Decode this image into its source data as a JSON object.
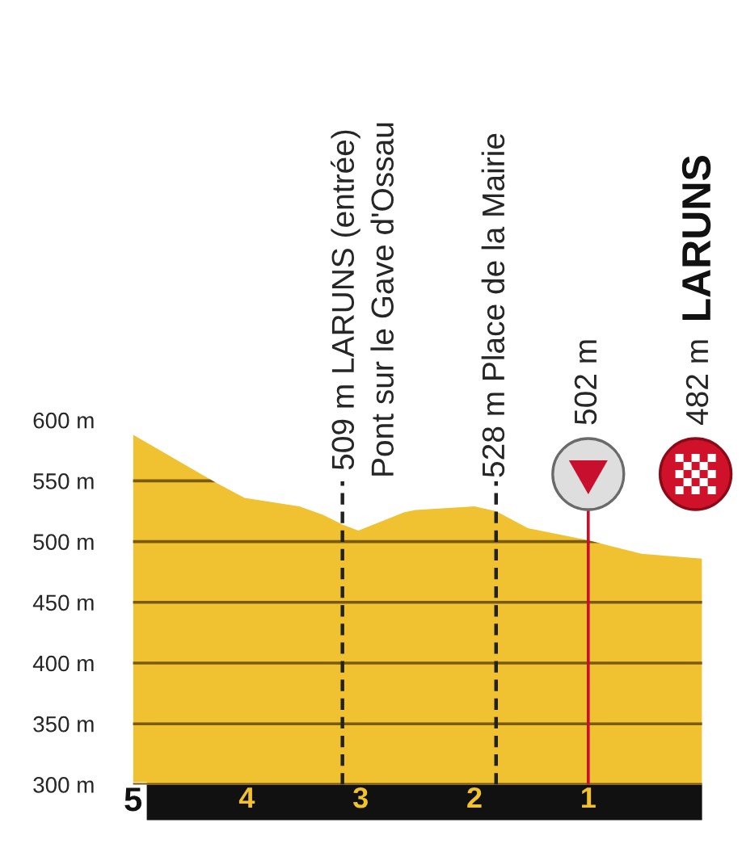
{
  "chart_data": {
    "type": "area",
    "x": [
      5,
      4.28,
      4.02,
      3.54,
      3.33,
      3.16,
      3.02,
      2.62,
      2.52,
      2.0,
      1.81,
      1.53,
      1.0,
      0.53,
      0
    ],
    "values": [
      588,
      549,
      536,
      529,
      522,
      514,
      509,
      524,
      526,
      529,
      525,
      511,
      501,
      490,
      486
    ],
    "color": "#f0c131",
    "xlim": [
      5,
      0
    ],
    "xticks": [
      5,
      4,
      3,
      2,
      1
    ],
    "ylim": [
      300,
      600
    ],
    "yticks": [
      {
        "value": 300,
        "label": "300 m"
      },
      {
        "value": 350,
        "label": "350 m"
      },
      {
        "value": 400,
        "label": "400 m"
      },
      {
        "value": 450,
        "label": "450 m"
      },
      {
        "value": 500,
        "label": "500 m"
      },
      {
        "value": 550,
        "label": "550 m"
      },
      {
        "value": 600,
        "label": "600 m"
      }
    ],
    "grid": "y",
    "ref_lines": [
      {
        "axis": "x",
        "value": 3.16,
        "label": "509 m LARUNS (entrée)\nPont sur le Gave d'Ossau",
        "color": "#222222",
        "line_style": "dashed"
      },
      {
        "axis": "x",
        "value": 1.81,
        "label": "528 m Place de la Mairie",
        "color": "#222222",
        "line_style": "dashed"
      },
      {
        "axis": "x",
        "value": 1,
        "label": "502 m",
        "color": "#c8102e",
        "line_style": "solid"
      }
    ],
    "annotations": [
      "482 m",
      "LARUNS"
    ]
  }
}
